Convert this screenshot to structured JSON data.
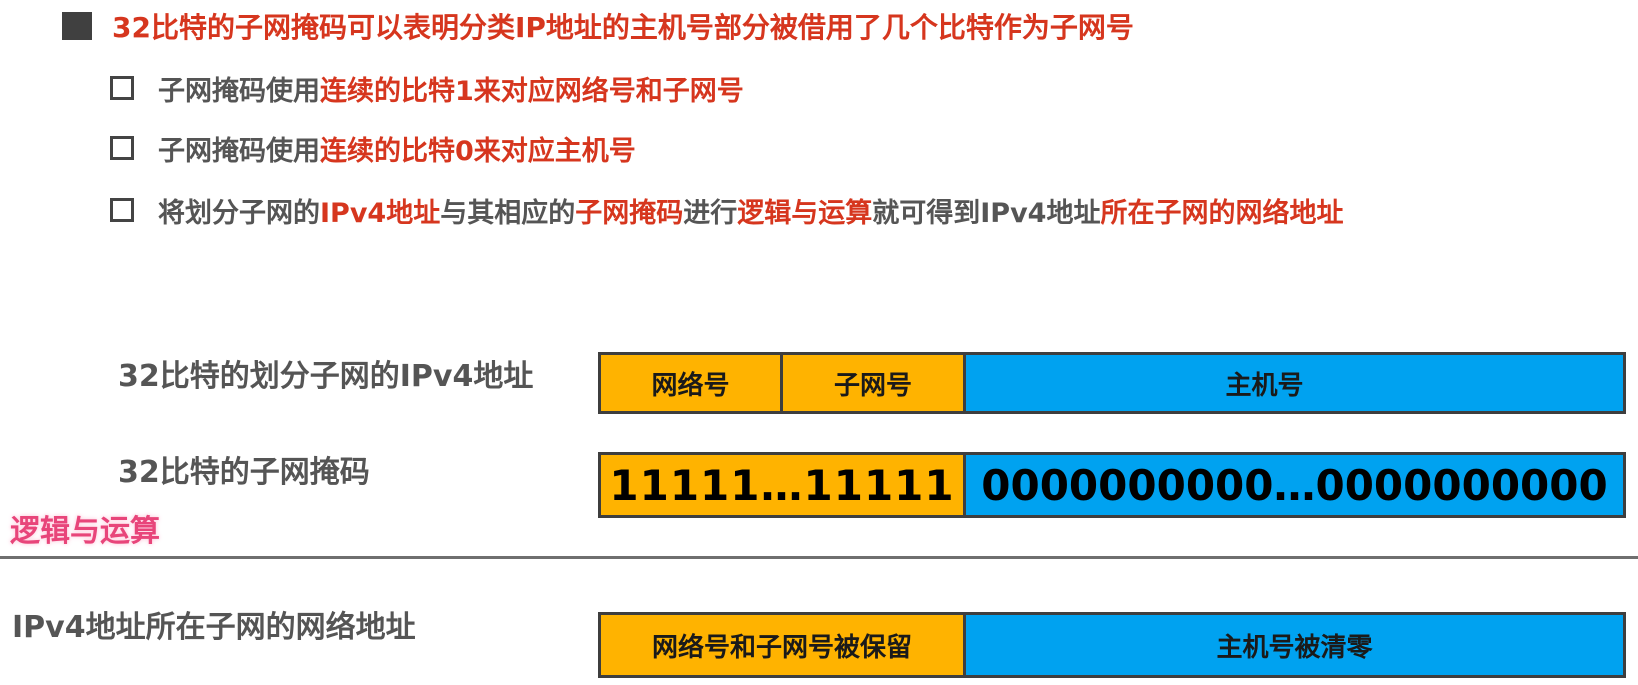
{
  "heading": {
    "text": "32比特的子网掩码可以表明分类IP地址的主机号部分被借用了几个比特作为子网号"
  },
  "bullets": [
    {
      "plain": "子网掩码使用",
      "red": "连续的比特1来对应网络号和子网号"
    },
    {
      "plain": "子网掩码使用",
      "red": "连续的比特0来对应主机号"
    },
    {
      "parts": [
        "将划分子网的",
        "IPv4地址",
        "与其相应的",
        "子网掩码",
        "进行",
        "逻辑与运算",
        "就可得到IPv4地址",
        "所在子网的网络地址"
      ]
    }
  ],
  "rows": {
    "address": {
      "label": "32比特的划分子网的IPv4地址",
      "network": "网络号",
      "subnet": "子网号",
      "host": "主机号"
    },
    "mask": {
      "label": "32比特的子网掩码",
      "ones": "11111…11111",
      "zeros": "0000000000…0000000000"
    },
    "operation": {
      "label": "逻辑与运算"
    },
    "result": {
      "label": "IPv4地址所在子网的网络地址",
      "kept": "网络号和子网号被保留",
      "cleared": "主机号被清零"
    }
  },
  "colors": {
    "red_text": "#d6361e",
    "gray_text": "#555555",
    "orange_fill": "#ffb300",
    "blue_fill": "#00a2f0",
    "pink_label": "#e8457a"
  }
}
